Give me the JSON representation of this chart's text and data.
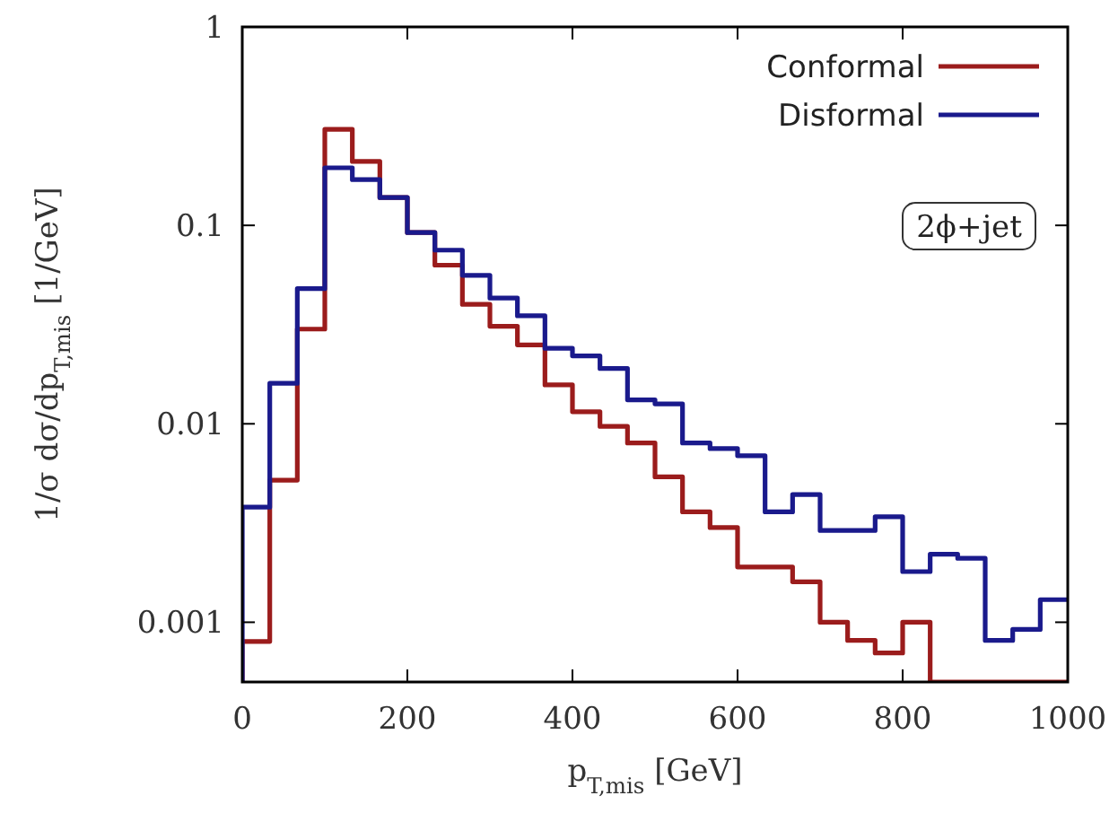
{
  "chart_data": {
    "type": "histogram",
    "xlabel": "p$_{T,mis}$ [GeV]",
    "ylabel": "1/σ dσ/dp$_{T,mis}$ [1/GeV]",
    "bins": [
      0,
      33.33,
      66.67,
      100,
      133.33,
      166.67,
      200,
      233.33,
      266.67,
      300,
      333.33,
      366.67,
      400,
      433.33,
      466.67,
      500,
      533.33,
      566.67,
      600,
      633.33,
      666.67,
      700,
      733.33,
      766.67,
      800,
      833.33,
      866.67,
      900,
      933.33,
      966.67,
      1000
    ],
    "series": [
      {
        "name": "Conformal",
        "color": "#9b1c1c",
        "values": [
          0.0008,
          0.0052,
          0.03,
          0.305,
          0.21,
          0.138,
          0.092,
          0.063,
          0.04,
          0.031,
          0.025,
          0.0157,
          0.0115,
          0.0097,
          0.008,
          0.0054,
          0.0036,
          0.003,
          0.0019,
          0.0019,
          0.0016,
          0.001,
          0.00081,
          0.0007,
          0.001,
          null,
          null,
          null,
          null,
          null
        ]
      },
      {
        "name": "Disformal",
        "color": "#1a1a8c",
        "values": [
          0.0038,
          0.016,
          0.048,
          0.195,
          0.17,
          0.138,
          0.092,
          0.075,
          0.056,
          0.043,
          0.035,
          0.024,
          0.022,
          0.019,
          0.0132,
          0.0126,
          0.008,
          0.0075,
          0.0069,
          0.0036,
          0.0044,
          0.0029,
          0.0029,
          0.0034,
          0.0018,
          0.0022,
          0.0021,
          0.00081,
          0.00092,
          0.0013
        ]
      }
    ],
    "xlim": [
      0,
      1000
    ],
    "xticks": [
      0,
      200,
      400,
      600,
      800,
      1000
    ],
    "ylim": [
      0.0005,
      1
    ],
    "yticks": [
      0.001,
      0.01,
      0.1,
      1
    ],
    "log": "y",
    "legend": "top right",
    "grid": false,
    "annotations": [
      "2ϕ+jet"
    ]
  }
}
